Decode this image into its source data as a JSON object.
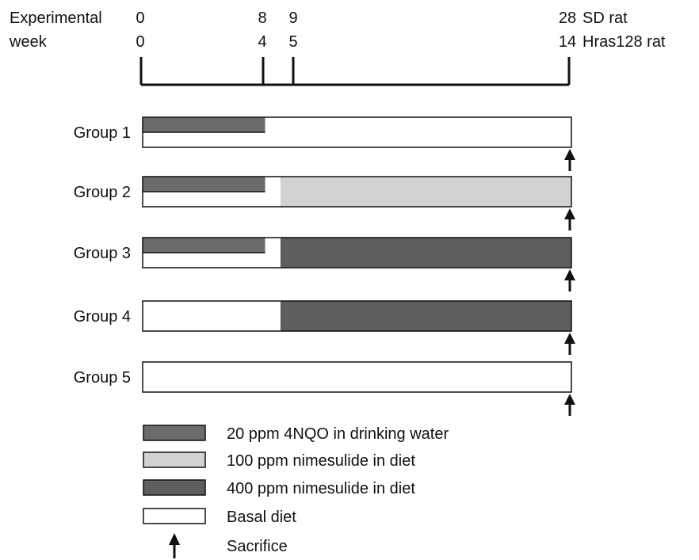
{
  "header": {
    "title_line1": "Experimental",
    "title_line2": "week",
    "row1_label": "SD rat",
    "row2_label": "Hras128 rat"
  },
  "timeline": {
    "ticks": [
      {
        "sd": "0",
        "hras": "0",
        "week": 0
      },
      {
        "sd": "8",
        "hras": "4",
        "week": 8
      },
      {
        "sd": "9",
        "hras": "5",
        "week": 9
      },
      {
        "sd": "28",
        "hras": "14",
        "week": 28
      }
    ],
    "total_weeks": 28
  },
  "groups": [
    {
      "label": "Group 1",
      "top": [
        {
          "from": 0,
          "to": 8,
          "treatment": "4nqo"
        },
        {
          "from": 8,
          "to": 28,
          "treatment": "basal"
        }
      ],
      "bottom": [
        {
          "from": 0,
          "to": 28,
          "treatment": "basal"
        }
      ],
      "sacrifice_week": 28
    },
    {
      "label": "Group 2",
      "top": [
        {
          "from": 0,
          "to": 8,
          "treatment": "4nqo"
        },
        {
          "from": 8,
          "to": 9,
          "treatment": "basal"
        },
        {
          "from": 9,
          "to": 28,
          "treatment": "nim100"
        }
      ],
      "bottom": [
        {
          "from": 0,
          "to": 9,
          "treatment": "basal"
        },
        {
          "from": 9,
          "to": 28,
          "treatment": "nim100"
        }
      ],
      "sacrifice_week": 28
    },
    {
      "label": "Group 3",
      "top": [
        {
          "from": 0,
          "to": 8,
          "treatment": "4nqo"
        },
        {
          "from": 8,
          "to": 9,
          "treatment": "basal"
        },
        {
          "from": 9,
          "to": 28,
          "treatment": "nim400"
        }
      ],
      "bottom": [
        {
          "from": 0,
          "to": 9,
          "treatment": "basal"
        },
        {
          "from": 9,
          "to": 28,
          "treatment": "nim400"
        }
      ],
      "sacrifice_week": 28
    },
    {
      "label": "Group 4",
      "top": [
        {
          "from": 0,
          "to": 9,
          "treatment": "basal"
        },
        {
          "from": 9,
          "to": 28,
          "treatment": "nim400"
        }
      ],
      "bottom": [
        {
          "from": 0,
          "to": 9,
          "treatment": "basal"
        },
        {
          "from": 9,
          "to": 28,
          "treatment": "nim400"
        }
      ],
      "sacrifice_week": 28
    },
    {
      "label": "Group 5",
      "top": [
        {
          "from": 0,
          "to": 28,
          "treatment": "basal"
        }
      ],
      "bottom": [
        {
          "from": 0,
          "to": 28,
          "treatment": "basal"
        }
      ],
      "sacrifice_week": 28
    }
  ],
  "legend": [
    {
      "key": "4nqo",
      "label": "20 ppm 4NQO in drinking water",
      "color": "#6b6b6b"
    },
    {
      "key": "nim100",
      "label": "100 ppm nimesulide in diet",
      "color": "#d2d2d2"
    },
    {
      "key": "nim400",
      "label": "400 ppm nimesulide in diet",
      "color": "#5e5e5e"
    },
    {
      "key": "basal",
      "label": "Basal diet",
      "color": "#ffffff"
    },
    {
      "key": "sacrifice",
      "label": "Sacrifice",
      "icon": "up-arrow-icon"
    }
  ],
  "colors": {
    "line": "#111111",
    "4nqo": "#6b6b6b",
    "nim100": "#d2d2d2",
    "nim400": "#5e5e5e",
    "basal": "#ffffff"
  }
}
